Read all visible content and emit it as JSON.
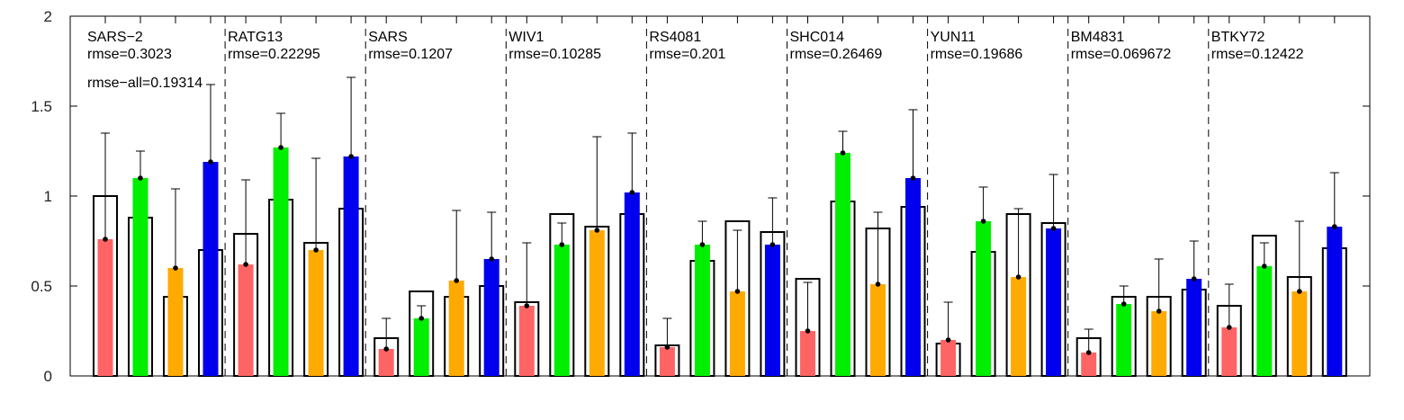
{
  "chart_data": {
    "type": "bar",
    "ylim": [
      0,
      2
    ],
    "yticks": [
      0,
      0.5,
      1,
      1.5,
      2
    ],
    "ytick_labels": [
      "0",
      "0.5",
      "1",
      "1.5",
      "2"
    ],
    "grid": false,
    "colors": [
      "#ff6464",
      "#00ee00",
      "#ffaa00",
      "#0000ee"
    ],
    "overall_annotation": "rmse−all=0.19314",
    "groups": [
      {
        "name": "SARS−2",
        "rmse": "rmse=0.3023",
        "values": [
          0.76,
          1.1,
          0.6,
          1.19
        ],
        "reference": [
          1.0,
          0.88,
          0.44,
          0.7
        ],
        "error_upper": [
          1.35,
          1.25,
          1.04,
          1.62
        ]
      },
      {
        "name": "RATG13",
        "rmse": "rmse=0.22295",
        "values": [
          0.62,
          1.27,
          0.7,
          1.22
        ],
        "reference": [
          0.79,
          0.98,
          0.74,
          0.93
        ],
        "error_upper": [
          1.09,
          1.46,
          1.21,
          1.66
        ]
      },
      {
        "name": "SARS",
        "rmse": "rmse=0.1207",
        "values": [
          0.15,
          0.32,
          0.53,
          0.65
        ],
        "reference": [
          0.21,
          0.47,
          0.44,
          0.5
        ],
        "error_upper": [
          0.32,
          0.39,
          0.92,
          0.91
        ]
      },
      {
        "name": "WIV1",
        "rmse": "rmse=0.10285",
        "values": [
          0.39,
          0.73,
          0.81,
          1.02
        ],
        "reference": [
          0.41,
          0.9,
          0.83,
          0.9
        ],
        "error_upper": [
          0.74,
          0.85,
          1.33,
          1.35
        ]
      },
      {
        "name": "RS4081",
        "rmse": "rmse=0.201",
        "values": [
          0.16,
          0.73,
          0.47,
          0.73
        ],
        "reference": [
          0.17,
          0.64,
          0.86,
          0.8
        ],
        "error_upper": [
          0.32,
          0.86,
          0.81,
          0.99
        ]
      },
      {
        "name": "SHC014",
        "rmse": "rmse=0.26469",
        "values": [
          0.25,
          1.24,
          0.51,
          1.1
        ],
        "reference": [
          0.54,
          0.97,
          0.82,
          0.94
        ],
        "error_upper": [
          0.52,
          1.36,
          0.91,
          1.48
        ]
      },
      {
        "name": "YUN11",
        "rmse": "rmse=0.19686",
        "values": [
          0.2,
          0.86,
          0.55,
          0.82
        ],
        "reference": [
          0.18,
          0.69,
          0.9,
          0.85
        ],
        "error_upper": [
          0.41,
          1.05,
          0.93,
          1.12
        ]
      },
      {
        "name": "BM4831",
        "rmse": "rmse=0.069672",
        "values": [
          0.13,
          0.4,
          0.36,
          0.54
        ],
        "reference": [
          0.21,
          0.44,
          0.44,
          0.48
        ],
        "error_upper": [
          0.26,
          0.5,
          0.65,
          0.75
        ]
      },
      {
        "name": "BTKY72",
        "rmse": "rmse=0.12422",
        "values": [
          0.27,
          0.61,
          0.47,
          0.83
        ],
        "reference": [
          0.39,
          0.78,
          0.55,
          0.71
        ],
        "error_upper": [
          0.51,
          0.74,
          0.86,
          1.13
        ]
      }
    ]
  }
}
